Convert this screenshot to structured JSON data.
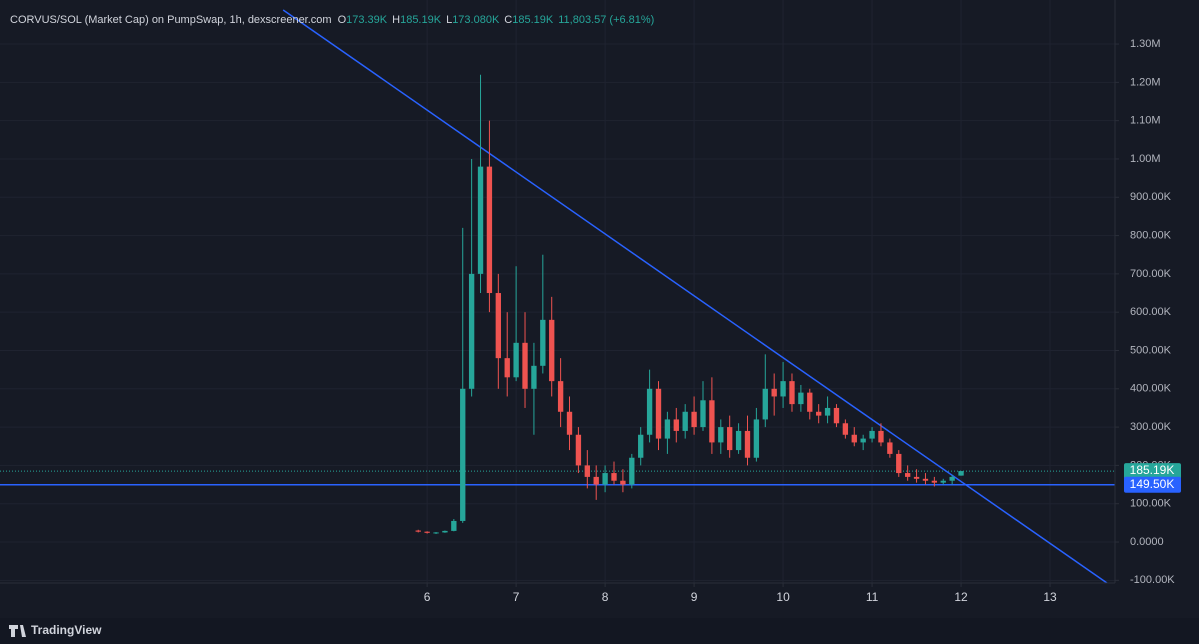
{
  "chart_data": {
    "type": "candlestick",
    "title": "CORVUS/SOL (Market Cap) on PumpSwap, 1h, dexscreener.com",
    "ohlc": [
      {
        "key": "O",
        "value": "173.39K"
      },
      {
        "key": "H",
        "value": "185.19K"
      },
      {
        "key": "L",
        "value": "173.080K"
      },
      {
        "key": "C",
        "value": "185.19K"
      }
    ],
    "change": "11,803.57 (+6.81%)",
    "up_color": "#26a69a",
    "down_color": "#ef5350",
    "x": [
      5.9,
      6.0,
      6.1,
      6.2,
      6.3,
      6.4,
      6.5,
      6.6,
      6.7,
      6.8,
      6.9,
      7.0,
      7.1,
      7.2,
      7.3,
      7.4,
      7.5,
      7.6,
      7.7,
      7.8,
      7.9,
      8.0,
      8.1,
      8.2,
      8.3,
      8.4,
      8.5,
      8.6,
      8.7,
      8.8,
      8.9,
      9.0,
      9.1,
      9.2,
      9.3,
      9.4,
      9.5,
      9.6,
      9.7,
      9.8,
      9.9,
      10.0,
      10.1,
      10.2,
      10.3,
      10.4,
      10.5,
      10.6,
      10.7,
      10.8,
      10.9,
      11.0,
      11.1,
      11.2,
      11.3,
      11.4,
      11.5,
      11.6,
      11.7,
      11.8,
      11.9,
      12.0
    ],
    "open": [
      30000,
      27000,
      24000,
      25000,
      29000,
      55000,
      400000,
      700000,
      980000,
      650000,
      480000,
      430000,
      520000,
      400000,
      460000,
      580000,
      420000,
      340000,
      280000,
      200000,
      170000,
      150000,
      180000,
      160000,
      150000,
      220000,
      280000,
      400000,
      270000,
      320000,
      290000,
      340000,
      300000,
      370000,
      260000,
      300000,
      240000,
      290000,
      220000,
      320000,
      400000,
      380000,
      420000,
      360000,
      390000,
      340000,
      330000,
      350000,
      310000,
      280000,
      260000,
      270000,
      290000,
      260000,
      230000,
      180000,
      170000,
      165000,
      160000,
      155000,
      160000,
      173390
    ],
    "high": [
      32000,
      28000,
      26000,
      30000,
      60000,
      820000,
      1000000,
      1220000,
      1100000,
      700000,
      600000,
      720000,
      600000,
      520000,
      750000,
      640000,
      480000,
      380000,
      300000,
      240000,
      200000,
      200000,
      210000,
      190000,
      230000,
      300000,
      450000,
      420000,
      340000,
      350000,
      360000,
      380000,
      420000,
      430000,
      320000,
      330000,
      310000,
      330000,
      350000,
      490000,
      440000,
      470000,
      440000,
      410000,
      400000,
      360000,
      380000,
      360000,
      320000,
      300000,
      280000,
      300000,
      310000,
      270000,
      240000,
      200000,
      190000,
      180000,
      170000,
      165000,
      175000,
      185190
    ],
    "low": [
      25000,
      22000,
      21000,
      24000,
      28000,
      50000,
      380000,
      650000,
      600000,
      400000,
      380000,
      420000,
      350000,
      280000,
      440000,
      380000,
      300000,
      240000,
      180000,
      140000,
      110000,
      130000,
      150000,
      130000,
      140000,
      200000,
      260000,
      240000,
      230000,
      260000,
      270000,
      280000,
      290000,
      230000,
      230000,
      220000,
      230000,
      200000,
      210000,
      300000,
      330000,
      350000,
      340000,
      340000,
      320000,
      310000,
      310000,
      300000,
      270000,
      250000,
      240000,
      260000,
      250000,
      220000,
      170000,
      160000,
      155000,
      150000,
      145000,
      150000,
      150000,
      173080
    ],
    "close": [
      27000,
      24000,
      25000,
      29000,
      55000,
      400000,
      700000,
      980000,
      650000,
      480000,
      430000,
      520000,
      400000,
      460000,
      580000,
      420000,
      340000,
      280000,
      200000,
      170000,
      150000,
      180000,
      160000,
      150000,
      220000,
      280000,
      400000,
      270000,
      320000,
      290000,
      340000,
      300000,
      370000,
      260000,
      300000,
      240000,
      290000,
      220000,
      320000,
      400000,
      380000,
      420000,
      360000,
      390000,
      340000,
      330000,
      350000,
      310000,
      280000,
      260000,
      270000,
      290000,
      260000,
      230000,
      180000,
      170000,
      165000,
      160000,
      155000,
      160000,
      170000,
      185190
    ],
    "xlim": [
      1.2,
      13.73
    ],
    "xticks": [
      6,
      7,
      8,
      9,
      10,
      11,
      12,
      13
    ],
    "ylim": [
      -107000,
      1415000
    ],
    "yticks": [
      {
        "value": -100000,
        "label": "-100.00K"
      },
      {
        "value": 0,
        "label": "0.0000"
      },
      {
        "value": 100000,
        "label": "100.00K"
      },
      {
        "value": 200000,
        "label": "200.00K"
      },
      {
        "value": 300000,
        "label": "300.00K"
      },
      {
        "value": 400000,
        "label": "400.00K"
      },
      {
        "value": 500000,
        "label": "500.00K"
      },
      {
        "value": 600000,
        "label": "600.00K"
      },
      {
        "value": 700000,
        "label": "700.00K"
      },
      {
        "value": 800000,
        "label": "800.00K"
      },
      {
        "value": 900000,
        "label": "900.00K"
      },
      {
        "value": 1000000,
        "label": "1.00M"
      },
      {
        "value": 1100000,
        "label": "1.10M"
      },
      {
        "value": 1200000,
        "label": "1.20M"
      },
      {
        "value": 1300000,
        "label": "1.30M"
      }
    ],
    "grid": true,
    "last_price": {
      "value": 185190,
      "label": "185.19K",
      "color": "#26a69a"
    },
    "hline": {
      "value": 149500,
      "label": "149.50K",
      "color": "#2962ff"
    },
    "trendline": {
      "x": [
        4.382,
        13.64
      ],
      "y": [
        1389000,
        -107000
      ],
      "color": "#2962ff"
    },
    "footer": "TradingView"
  }
}
